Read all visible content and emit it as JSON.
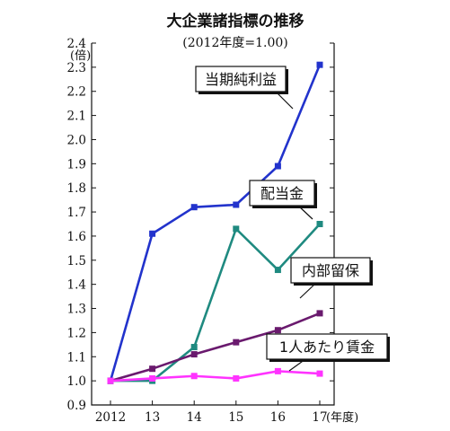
{
  "chart_data": {
    "type": "line",
    "title": "大企業諸指標の推移",
    "subtitle": "(2012年度=1.00)",
    "y_unit": "(倍)",
    "x_unit": "(年度)",
    "categories": [
      "2012",
      "13",
      "14",
      "15",
      "16",
      "17"
    ],
    "ylim": [
      0.9,
      2.4
    ],
    "ytick_step": 0.1,
    "grid": false,
    "series": [
      {
        "name": "当期純利益",
        "color": "#2233cc",
        "values": [
          1.0,
          1.61,
          1.72,
          1.73,
          1.89,
          2.31
        ]
      },
      {
        "name": "配当金",
        "color": "#1f8a80",
        "values": [
          1.0,
          1.0,
          1.14,
          1.63,
          1.46,
          1.65
        ]
      },
      {
        "name": "内部留保",
        "color": "#6a1a6e",
        "values": [
          1.0,
          1.05,
          1.11,
          1.16,
          1.21,
          1.28
        ]
      },
      {
        "name": "1人あたり賃金",
        "color": "#ff33ff",
        "values": [
          1.0,
          1.01,
          1.02,
          1.01,
          1.04,
          1.03
        ]
      }
    ]
  }
}
